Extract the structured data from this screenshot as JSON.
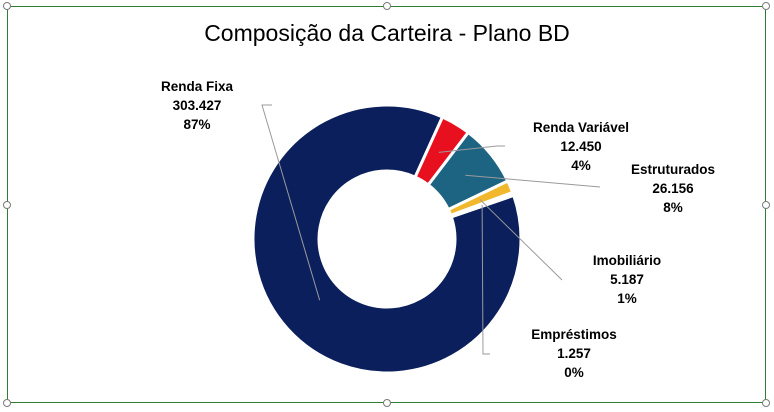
{
  "chart_data": {
    "type": "pie",
    "subtype": "donut",
    "title": "Composição da Carteira - Plano BD",
    "series": [
      {
        "name": "Renda Fixa",
        "value": 303427,
        "value_label": "303.427",
        "percent_label": "87%",
        "color": "#0a1f5c"
      },
      {
        "name": "Renda Variável",
        "value": 12450,
        "value_label": "12.450",
        "percent_label": "4%",
        "color": "#e8101e"
      },
      {
        "name": "Estruturados",
        "value": 26156,
        "value_label": "26.156",
        "percent_label": "8%",
        "color": "#1c6481"
      },
      {
        "name": "Imobiliário",
        "value": 5187,
        "value_label": "5.187",
        "percent_label": "1%",
        "color": "#f1b82d"
      },
      {
        "name": "Empréstimos",
        "value": 1257,
        "value_label": "1.257",
        "percent_label": "0%",
        "color": "#1c6481"
      }
    ],
    "legend": "none",
    "data_labels": true
  },
  "colors": {
    "frame_border": "#2e7d32",
    "leader_line": "#9a9a9a"
  }
}
